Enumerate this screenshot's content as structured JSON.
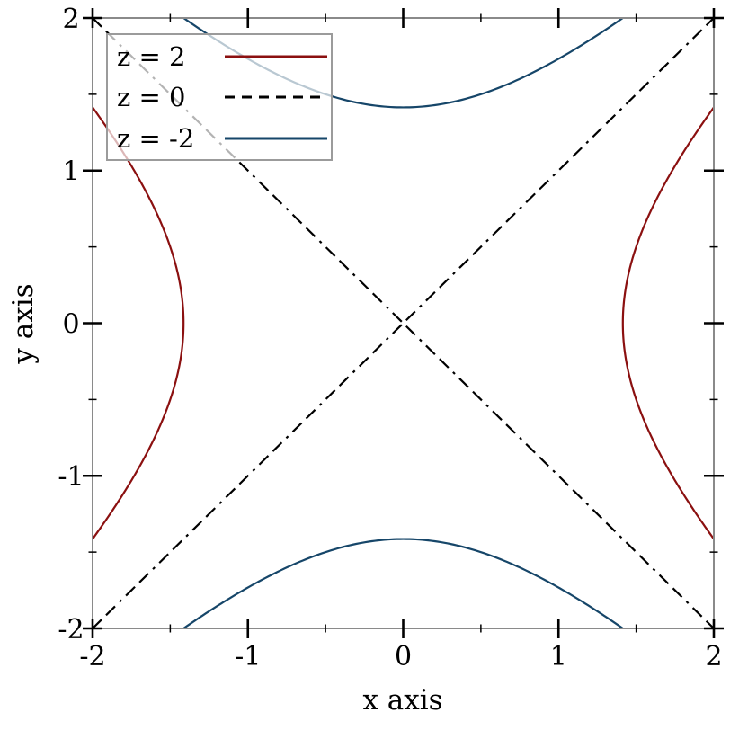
{
  "chart_data": {
    "type": "line",
    "subtype": "contour-plot",
    "equation": "z = x^2 - y^2",
    "title": "",
    "xlabel": "x axis",
    "ylabel": "y axis",
    "xlim": [
      -2,
      2
    ],
    "ylim": [
      -2,
      2
    ],
    "grid": false,
    "legend_position": "top-left",
    "x_major_ticks": [
      -2,
      -1,
      0,
      1,
      2
    ],
    "x_minor_ticks": [
      -1.5,
      -0.5,
      0.5,
      1.5
    ],
    "y_major_ticks": [
      -2,
      -1,
      0,
      1,
      2
    ],
    "y_minor_ticks": [
      -1.5,
      -0.5,
      0.5,
      1.5
    ],
    "x_tick_labels": [
      "-2",
      "-1",
      "0",
      "1",
      "2"
    ],
    "y_tick_labels": [
      "-2",
      "-1",
      "0",
      "1",
      "2"
    ],
    "contours": [
      {
        "label": "z = 2",
        "z": 2,
        "color": "#8b1010",
        "line_style": "solid",
        "shape": "hyperbola opening left/right, x = ±sqrt(2 + y^2)",
        "key_points": [
          [
            1.414,
            0
          ],
          [
            -1.414,
            0
          ],
          [
            2,
            1.414
          ],
          [
            2,
            -1.414
          ],
          [
            -2,
            1.414
          ],
          [
            -2,
            -1.414
          ]
        ]
      },
      {
        "label": "z = 0",
        "z": 0,
        "color": "#000000",
        "line_style": "dashed",
        "shape": "asymptote lines y = x and y = -x",
        "key_points": [
          [
            -2,
            -2
          ],
          [
            2,
            2
          ],
          [
            -2,
            2
          ],
          [
            2,
            -2
          ],
          [
            0,
            0
          ]
        ]
      },
      {
        "label": "z = -2",
        "z": -2,
        "color": "#164669",
        "line_style": "solid",
        "shape": "hyperbola opening up/down, y = ±sqrt(2 + x^2)",
        "key_points": [
          [
            0,
            1.414
          ],
          [
            0,
            -1.414
          ],
          [
            1.414,
            2
          ],
          [
            -1.414,
            2
          ],
          [
            1.414,
            -2
          ],
          [
            -1.414,
            -2
          ]
        ]
      }
    ],
    "colors": {
      "frame": "#8a8a8a",
      "ticks": "#000000",
      "legend_border": "#9b9b9b",
      "legend_bg": "rgba(255,255,255,0.7)"
    }
  }
}
